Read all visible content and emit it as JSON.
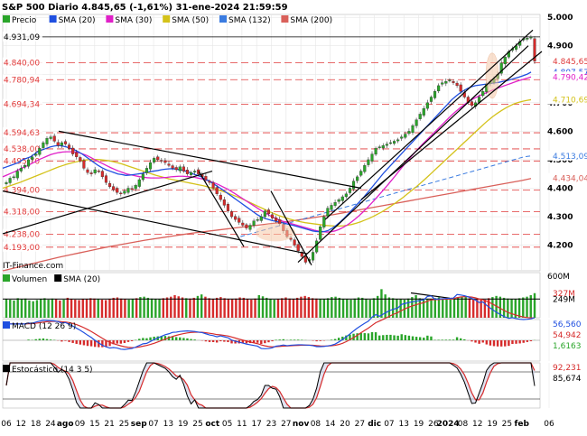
{
  "header": {
    "title": "S&P 500 Diario 4.845,65 (-1,61%) 31-ene-2024 21:59:59"
  },
  "colors": {
    "background": "#ffffff",
    "grid": "#e6e6e6",
    "up": "#2aa52a",
    "down": "#d62b2b",
    "sma20": "#1f4fe0",
    "sma30": "#e020c8",
    "sma50": "#d4c21a",
    "sma132": "#3a7be0",
    "sma200": "#d9605a",
    "trendline": "#000000",
    "hline": "#e03a3a",
    "highlight": "#f5c8a8"
  },
  "chart_data": [
    {
      "panel": "price",
      "type": "candlestick",
      "legend": [
        {
          "name": "Precio",
          "color": "#2aa52a"
        },
        {
          "name": "SMA (20)",
          "color": "#1f4fe0"
        },
        {
          "name": "SMA (30)",
          "color": "#e020c8"
        },
        {
          "name": "SMA (50)",
          "color": "#d4c21a"
        },
        {
          "name": "SMA (132)",
          "color": "#3a7be0"
        },
        {
          "name": "SMA (200)",
          "color": "#d9605a"
        }
      ],
      "watermark": "IT-Finance.com",
      "y_range": [
        4110,
        5010
      ],
      "y_ticks": [
        "5.000",
        "4.900",
        "4.800",
        "4.700",
        "4.600",
        "4.500",
        "4.400",
        "4.300",
        "4.200"
      ],
      "y_tick_values": [
        5000,
        4900,
        4800,
        4700,
        4600,
        4500,
        4400,
        4300,
        4200
      ],
      "levels": [
        {
          "label": "4.931,09",
          "value": 4931.09,
          "style": "solid"
        },
        {
          "label": "4.840,00",
          "value": 4840,
          "style": "dashed"
        },
        {
          "label": "4.780,94",
          "value": 4780.94,
          "style": "dashed"
        },
        {
          "label": "4.694,34",
          "value": 4694.34,
          "style": "dashed"
        },
        {
          "label": "4.594,63",
          "value": 4594.63,
          "style": "dashed"
        },
        {
          "label": "4.538,00",
          "value": 4538,
          "style": "dashed"
        },
        {
          "label": "4.495,70",
          "value": 4495.7,
          "style": "dashed"
        },
        {
          "label": "4.394,00",
          "value": 4394,
          "style": "dashed"
        },
        {
          "label": "4.318,00",
          "value": 4318,
          "style": "dashed"
        },
        {
          "label": "4.238,00",
          "value": 4238,
          "style": "dashed"
        },
        {
          "label": "4.193,00",
          "value": 4193,
          "style": "dashed"
        }
      ],
      "right_labels": [
        {
          "label": "4.845,65",
          "value": 4845.65,
          "color": "#e03a3a"
        },
        {
          "label": "4.807,57",
          "value": 4807.57,
          "color": "#1f4fe0"
        },
        {
          "label": "4.790,42",
          "value": 4790.42,
          "color": "#e020c8"
        },
        {
          "label": "4.710,69",
          "value": 4710.69,
          "color": "#d4c21a"
        },
        {
          "label": "4.513,09",
          "value": 4513.09,
          "color": "#3a7be0"
        },
        {
          "label": "4.434,04",
          "value": 4434.04,
          "color": "#d9605a"
        }
      ],
      "close_series": [
        4420,
        4435,
        4440,
        4460,
        4470,
        4480,
        4500,
        4510,
        4520,
        4540,
        4560,
        4575,
        4580,
        4565,
        4550,
        4560,
        4555,
        4540,
        4520,
        4510,
        4495,
        4470,
        4455,
        4450,
        4465,
        4460,
        4440,
        4420,
        4405,
        4395,
        4385,
        4380,
        4390,
        4400,
        4395,
        4410,
        4430,
        4450,
        4470,
        4490,
        4505,
        4500,
        4495,
        4490,
        4480,
        4470,
        4465,
        4475,
        4460,
        4450,
        4455,
        4460,
        4450,
        4440,
        4430,
        4420,
        4400,
        4380,
        4360,
        4340,
        4320,
        4300,
        4290,
        4280,
        4270,
        4260,
        4270,
        4285,
        4290,
        4300,
        4320,
        4310,
        4295,
        4285,
        4275,
        4250,
        4230,
        4220,
        4200,
        4180,
        4160,
        4140,
        4150,
        4175,
        4215,
        4265,
        4300,
        4330,
        4340,
        4350,
        4360,
        4370,
        4380,
        4400,
        4425,
        4440,
        4460,
        4480,
        4500,
        4520,
        4540,
        4545,
        4550,
        4555,
        4560,
        4565,
        4570,
        4580,
        4590,
        4600,
        4620,
        4640,
        4660,
        4680,
        4700,
        4720,
        4740,
        4760,
        4770,
        4775,
        4780,
        4770,
        4760,
        4740,
        4720,
        4700,
        4690,
        4700,
        4720,
        4740,
        4765,
        4775,
        4785,
        4800,
        4840,
        4860,
        4880,
        4890,
        4900,
        4915,
        4925,
        4927,
        4930,
        4845.65
      ],
      "sma20_series": [
        4470,
        4475,
        4480,
        4485,
        4490,
        4500,
        4505,
        4510,
        4520,
        4530,
        4535,
        4540,
        4545,
        4548,
        4550,
        4548,
        4545,
        4540,
        4535,
        4528,
        4520,
        4510,
        4500,
        4490,
        4480,
        4472,
        4465,
        4460,
        4455,
        4450,
        4448,
        4445,
        4446,
        4448,
        4450,
        4452,
        4455,
        4458,
        4460,
        4462,
        4465,
        4467,
        4468,
        4468,
        4466,
        4464,
        4460,
        4456,
        4450,
        4445,
        4440,
        4432,
        4425,
        4416,
        4407,
        4398,
        4388,
        4378,
        4368,
        4358,
        4348,
        4338,
        4328,
        4318,
        4308,
        4300,
        4294,
        4290,
        4286,
        4283,
        4280,
        4277,
        4273,
        4270,
        4266,
        4262,
        4258,
        4254,
        4250,
        4248,
        4247,
        4248,
        4252,
        4260,
        4270,
        4282,
        4295,
        4310,
        4325,
        4340,
        4355,
        4370,
        4387,
        4404,
        4421,
        4438,
        4455,
        4470,
        4485,
        4500,
        4515,
        4530,
        4545,
        4560,
        4575,
        4590,
        4605,
        4620,
        4635,
        4650,
        4665,
        4680,
        4695,
        4710,
        4722,
        4733,
        4742,
        4750,
        4756,
        4760,
        4762,
        4764,
        4766,
        4768,
        4770,
        4772,
        4775,
        4778,
        4782,
        4786,
        4790,
        4795,
        4800,
        4807.57
      ],
      "sma30_series": [
        4440,
        4446,
        4452,
        4458,
        4465,
        4472,
        4478,
        4485,
        4492,
        4500,
        4506,
        4512,
        4518,
        4522,
        4525,
        4527,
        4528,
        4528,
        4527,
        4525,
        4520,
        4515,
        4508,
        4500,
        4493,
        4486,
        4479,
        4472,
        4466,
        4460,
        4455,
        4450,
        4447,
        4444,
        4441,
        4439,
        4437,
        4436,
        4436,
        4436,
        4437,
        4438,
        4440,
        4441,
        4442,
        4442,
        4441,
        4440,
        4438,
        4435,
        4432,
        4428,
        4423,
        4418,
        4412,
        4405,
        4398,
        4390,
        4381,
        4372,
        4363,
        4354,
        4345,
        4336,
        4327,
        4318,
        4310,
        4302,
        4295,
        4289,
        4284,
        4280,
        4276,
        4272,
        4268,
        4264,
        4260,
        4256,
        4252,
        4249,
        4247,
        4246,
        4247,
        4250,
        4255,
        4262,
        4270,
        4280,
        4291,
        4303,
        4316,
        4330,
        4345,
        4360,
        4376,
        4392,
        4408,
        4425,
        4442,
        4460,
        4477,
        4494,
        4510,
        4526,
        4541,
        4556,
        4570,
        4584,
        4598,
        4612,
        4626,
        4640,
        4654,
        4667,
        4679,
        4690,
        4700,
        4709,
        4717,
        4724,
        4730,
        4736,
        4742,
        4748,
        4753,
        4758,
        4763,
        4768,
        4773,
        4778,
        4782,
        4786,
        4790.42
      ],
      "sma50_series": [
        4400,
        4405,
        4410,
        4415,
        4420,
        4426,
        4432,
        4438,
        4444,
        4450,
        4456,
        4462,
        4468,
        4474,
        4479,
        4484,
        4488,
        4492,
        4495,
        4498,
        4500,
        4501,
        4501,
        4500,
        4498,
        4496,
        4493,
        4489,
        4485,
        4480,
        4475,
        4470,
        4465,
        4460,
        4455,
        4450,
        4445,
        4441,
        4437,
        4433,
        4430,
        4427,
        4424,
        4421,
        4418,
        4415,
        4412,
        4409,
        4405,
        4401,
        4397,
        4392,
        4387,
        4382,
        4376,
        4370,
        4364,
        4357,
        4350,
        4343,
        4336,
        4329,
        4322,
        4315,
        4309,
        4303,
        4298,
        4293,
        4289,
        4285,
        4282,
        4279,
        4277,
        4275,
        4273,
        4271,
        4269,
        4268,
        4267,
        4267,
        4268,
        4270,
        4273,
        4277,
        4282,
        4288,
        4294,
        4301,
        4309,
        4317,
        4326,
        4336,
        4346,
        4357,
        4368,
        4380,
        4392,
        4404,
        4417,
        4430,
        4444,
        4458,
        4472,
        4486,
        4500,
        4514,
        4528,
        4542,
        4556,
        4570,
        4584,
        4598,
        4612,
        4626,
        4639,
        4651,
        4662,
        4672,
        4681,
        4689,
        4696,
        4701,
        4705,
        4708,
        4710.69
      ],
      "sma132_series": [
        4230,
        4237,
        4244,
        4251,
        4258,
        4265,
        4272,
        4279,
        4286,
        4293,
        4300,
        4307,
        4314,
        4321,
        4328,
        4335,
        4342,
        4349,
        4356,
        4363,
        4370,
        4377,
        4384,
        4391,
        4398,
        4405,
        4412,
        4419,
        4426,
        4433,
        4440,
        4447,
        4454,
        4461,
        4468,
        4475,
        4482,
        4489,
        4496,
        4503,
        4510,
        4513.09
      ],
      "sma200_series": [
        4110,
        4118,
        4126,
        4134,
        4142,
        4150,
        4158,
        4165,
        4172,
        4179,
        4186,
        4193,
        4199,
        4205,
        4211,
        4217,
        4222,
        4227,
        4232,
        4237,
        4242,
        4246,
        4250,
        4254,
        4258,
        4262,
        4266,
        4270,
        4274,
        4278,
        4282,
        4287,
        4292,
        4297,
        4302,
        4307,
        4313,
        4319,
        4325,
        4331,
        4337,
        4343,
        4349,
        4355,
        4361,
        4367,
        4373,
        4379,
        4385,
        4391,
        4397,
        4403,
        4409,
        4415,
        4421,
        4427,
        4434.04
      ]
    },
    {
      "panel": "volume",
      "type": "bar",
      "legend": [
        {
          "name": "Volumen",
          "color": "#2aa52a"
        },
        {
          "name": "SMA (20)",
          "color": "#000000"
        }
      ],
      "y_range": [
        0,
        600
      ],
      "y_ticks": [
        "600M"
      ],
      "right_labels": [
        {
          "label": "327M",
          "value": 327,
          "color": "#d62b2b"
        },
        {
          "label": "249M",
          "value": 249,
          "color": "#000000"
        }
      ],
      "values": [
        250,
        240,
        230,
        260,
        245,
        255,
        230,
        220,
        235,
        250,
        260,
        240,
        255,
        245,
        230,
        240,
        265,
        250,
        240,
        235,
        250,
        245,
        260,
        255,
        245,
        240,
        235,
        250,
        265,
        270,
        255,
        245,
        240,
        250,
        260,
        275,
        280,
        265,
        255,
        250,
        245,
        260,
        270,
        280,
        300,
        285,
        270,
        260,
        255,
        265,
        290,
        310,
        280,
        260,
        250,
        265,
        275,
        260,
        250,
        245,
        255,
        270,
        265,
        250,
        240,
        255,
        300,
        285,
        265,
        250,
        240,
        245,
        260,
        270,
        255,
        250,
        265,
        280,
        290,
        275,
        260,
        255,
        250,
        245,
        260,
        275,
        280,
        265,
        250,
        245,
        240,
        255,
        270,
        265,
        250,
        240,
        260,
        290,
        380,
        310,
        270,
        260,
        250,
        245,
        240,
        255,
        275,
        300,
        260,
        250,
        245,
        250,
        260,
        270,
        255,
        245,
        240,
        250,
        265,
        280,
        275,
        260,
        255,
        250,
        245,
        240,
        260,
        275,
        290,
        280,
        265,
        255,
        250,
        245,
        260,
        270,
        280,
        300,
        327
      ],
      "sma_value": 249
    },
    {
      "panel": "macd",
      "type": "line",
      "title": "MACD (12 26 9)",
      "right_labels": [
        {
          "label": "56,560",
          "value": 56.56,
          "color": "#1f4fe0"
        },
        {
          "label": "54,942",
          "value": 54.942,
          "color": "#d62b2b"
        },
        {
          "label": "1,6163",
          "value": 1.6163,
          "color": "#2aa52a"
        }
      ],
      "y_range": [
        -80,
        80
      ]
    },
    {
      "panel": "stochastic",
      "type": "line",
      "title": "Estocástico (14 3 5)",
      "right_labels": [
        {
          "label": "92,231",
          "value": 92.231,
          "color": "#d62b2b"
        },
        {
          "label": "85,674",
          "value": 85.674,
          "color": "#000000"
        }
      ],
      "y_range": [
        0,
        100
      ]
    }
  ],
  "x_axis": {
    "ticks": [
      "06",
      "12",
      "18",
      "24",
      "ago",
      "09",
      "15",
      "21",
      "25",
      "sep",
      "07",
      "13",
      "19",
      "25",
      "oct",
      "05",
      "11",
      "17",
      "23",
      "27",
      "nov",
      "08",
      "14",
      "20",
      "27",
      "dic",
      "07",
      "13",
      "19",
      "26",
      "2024",
      "08",
      "12",
      "19",
      "25",
      "feb",
      "06"
    ],
    "bold_ticks": [
      "ago",
      "sep",
      "oct",
      "nov",
      "dic",
      "2024",
      "feb"
    ]
  }
}
